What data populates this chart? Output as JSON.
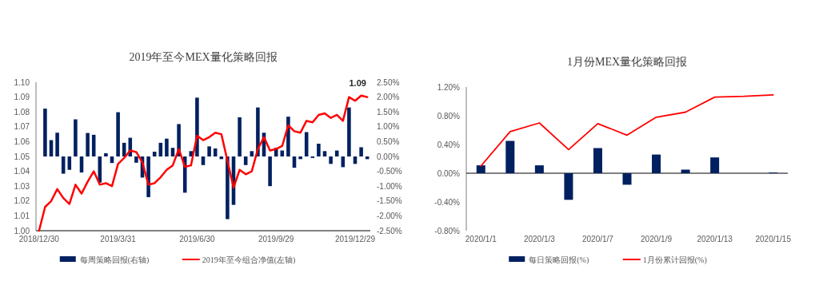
{
  "chart_data": [
    {
      "type": "bar",
      "title": "2019年至今MEX量化策略回报",
      "categories": [
        "2018/12/30",
        null,
        null,
        null,
        null,
        null,
        null,
        null,
        null,
        null,
        null,
        null,
        null,
        "2019/3/31",
        null,
        null,
        null,
        null,
        null,
        null,
        null,
        null,
        null,
        null,
        null,
        null,
        "2019/6/30",
        null,
        null,
        null,
        null,
        null,
        null,
        null,
        null,
        null,
        null,
        null,
        null,
        "2019/9/29",
        null,
        null,
        null,
        null,
        null,
        null,
        null,
        null,
        null,
        null,
        null,
        null,
        "2019/12/29",
        null,
        null
      ],
      "series": [
        {
          "name": "每周策略回报(右轴)",
          "axis": "y2",
          "color": "#002060",
          "values": [
            null,
            1.61,
            0.55,
            0.8,
            -0.58,
            -0.45,
            1.25,
            -0.54,
            0.79,
            0.73,
            -0.88,
            0.11,
            -0.22,
            1.49,
            0.46,
            0.63,
            -0.21,
            -0.71,
            -1.37,
            0.16,
            0.46,
            0.6,
            0.29,
            1.09,
            -1.22,
            0.18,
            1.98,
            -0.29,
            0.34,
            0.27,
            -0.09,
            -2.11,
            -1.63,
            1.32,
            -0.29,
            0.18,
            1.65,
            0.8,
            -1.0,
            0.29,
            0.2,
            1.34,
            -0.38,
            -0.09,
            0.82,
            -0.05,
            0.43,
            0.18,
            -0.25,
            0.2,
            -0.36,
            1.65,
            -0.25,
            0.31,
            -0.09
          ]
        },
        {
          "name": "2019年至今组合净值(左轴)",
          "type": "line",
          "color": "#ff0000",
          "values": [
            1.0,
            1.016,
            1.02,
            1.028,
            1.022,
            1.018,
            1.031,
            1.025,
            1.033,
            1.04,
            1.031,
            1.032,
            1.03,
            1.045,
            1.049,
            1.054,
            1.053,
            1.046,
            1.031,
            1.032,
            1.036,
            1.041,
            1.044,
            1.055,
            1.043,
            1.044,
            1.064,
            1.061,
            1.063,
            1.066,
            1.065,
            1.047,
            1.029,
            1.041,
            1.038,
            1.04,
            1.055,
            1.063,
            1.054,
            1.055,
            1.057,
            1.071,
            1.067,
            1.066,
            1.074,
            1.073,
            1.078,
            1.079,
            1.076,
            1.078,
            1.074,
            1.09,
            1.0875,
            1.091,
            1.09
          ]
        }
      ],
      "ylim": [
        1.0,
        1.1
      ],
      "yticks": [
        {
          "value": 1.0,
          "label": "1.00"
        },
        {
          "value": 1.01,
          "label": "1.01"
        },
        {
          "value": 1.02,
          "label": "1.02"
        },
        {
          "value": 1.03,
          "label": "1.03"
        },
        {
          "value": 1.04,
          "label": "1.04"
        },
        {
          "value": 1.05,
          "label": "1.05"
        },
        {
          "value": 1.06,
          "label": "1.06"
        },
        {
          "value": 1.07,
          "label": "1.07"
        },
        {
          "value": 1.08,
          "label": "1.08"
        },
        {
          "value": 1.09,
          "label": "1.09"
        },
        {
          "value": 1.1,
          "label": "1.10"
        }
      ],
      "y2lim": [
        -2.5,
        2.5
      ],
      "y2ticks": [
        {
          "value": 2.5,
          "label": "2.50%"
        },
        {
          "value": 2.0,
          "label": "2.00%"
        },
        {
          "value": 1.5,
          "label": "1.50%"
        },
        {
          "value": 1.0,
          "label": "1.00%"
        },
        {
          "value": 0.5,
          "label": "0.50%"
        },
        {
          "value": 0,
          "label": "0.00%"
        },
        {
          "value": -0.5,
          "label": "-0.50%"
        },
        {
          "value": -1.0,
          "label": "-1.00%"
        },
        {
          "value": -1.5,
          "label": "-1.50%"
        },
        {
          "value": -2.0,
          "label": "-2.00%"
        },
        {
          "value": -2.5,
          "label": "-2.50%"
        }
      ],
      "annotations": [
        {
          "text": "1.09",
          "y": 1.09
        }
      ],
      "legend": "bottom"
    },
    {
      "type": "bar",
      "title": "1月份MEX量化策略回报",
      "categories": [
        "2020/1/1",
        null,
        "2020/1/3",
        null,
        "2020/1/7",
        null,
        "2020/1/9",
        null,
        "2020/1/13",
        null,
        "2020/1/15"
      ],
      "series": [
        {
          "name": "每日策略回报(%)",
          "color": "#002060",
          "values": [
            0.11,
            0.45,
            0.11,
            -0.37,
            0.35,
            -0.16,
            0.26,
            0.05,
            0.22,
            null,
            0.01
          ]
        },
        {
          "name": "1月份累计回报(%)",
          "type": "line",
          "color": "#ff0000",
          "values": [
            0.1,
            0.58,
            0.7,
            0.33,
            0.69,
            0.53,
            0.78,
            0.85,
            1.06,
            1.07,
            1.09
          ]
        }
      ],
      "ylim": [
        -0.8,
        1.2
      ],
      "yticks": [
        {
          "value": 1.2,
          "label": "1.20%"
        },
        {
          "value": 0.8,
          "label": "0.80%"
        },
        {
          "value": 0.4,
          "label": "0.40%"
        },
        {
          "value": 0,
          "label": "0.00%"
        },
        {
          "value": -0.4,
          "label": "-0.40%"
        },
        {
          "value": -0.8,
          "label": "-0.80%"
        }
      ],
      "legend": "bottom"
    }
  ]
}
